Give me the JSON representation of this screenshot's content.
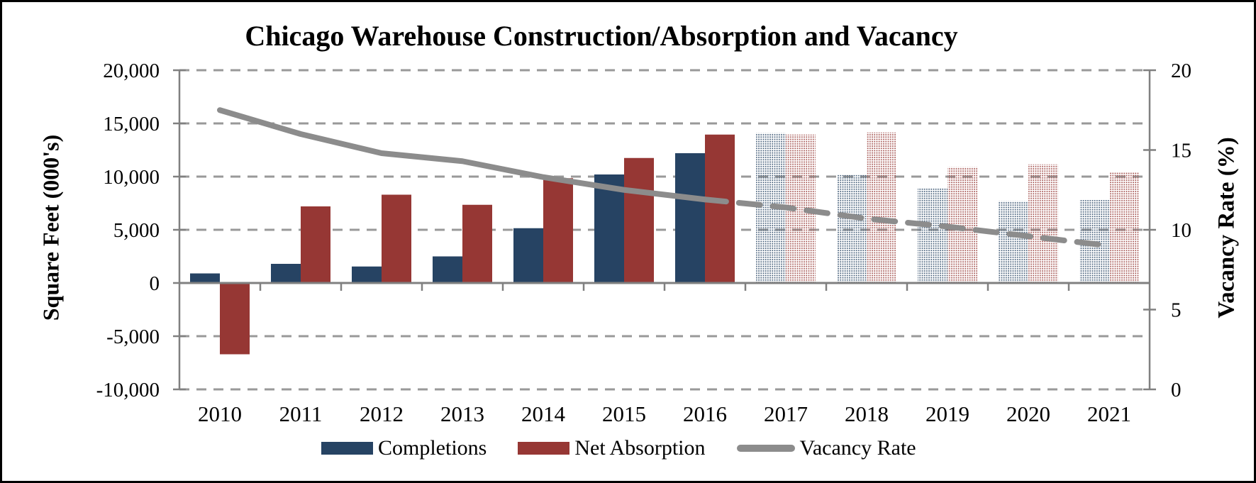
{
  "title": "Chicago Warehouse Construction/Absorption and Vacancy",
  "left_axis": {
    "title": "Square Feet (000's)",
    "tick_labels": [
      "20,000",
      "15,000",
      "10,000",
      "5,000",
      "0",
      "-5,000",
      "-10,000"
    ],
    "tick_values": [
      20000,
      15000,
      10000,
      5000,
      0,
      -5000,
      -10000
    ],
    "min": -10000,
    "max": 20000
  },
  "right_axis": {
    "title": "Vacancy Rate (%)",
    "tick_labels": [
      "20",
      "15",
      "10",
      "5",
      "0"
    ],
    "tick_values": [
      20,
      15,
      10,
      5,
      0
    ],
    "min": 0,
    "max": 20
  },
  "legend": [
    {
      "label": "Completions",
      "marker": "bar-blue"
    },
    {
      "label": "Net Absorption",
      "marker": "bar-red"
    },
    {
      "label": "Vacancy Rate",
      "marker": "line-gray"
    }
  ],
  "colors": {
    "completions": "#264363",
    "absorption": "#963734",
    "vacancy": "#8C8C8C",
    "gridline": "#999999",
    "axis": "#808080"
  },
  "chart_data": {
    "type": "bar+line combo",
    "categories": [
      "2010",
      "2011",
      "2012",
      "2013",
      "2014",
      "2015",
      "2016",
      "2017",
      "2018",
      "2019",
      "2020",
      "2021"
    ],
    "series": [
      {
        "name": "Completions",
        "type": "bar",
        "axis": "left",
        "values": [
          900,
          1800,
          1550,
          2500,
          5150,
          10200,
          12200,
          14100,
          10150,
          8900,
          7700,
          7800
        ]
      },
      {
        "name": "Net Absorption",
        "type": "bar",
        "axis": "left",
        "values": [
          -6700,
          7200,
          8300,
          7350,
          9850,
          11750,
          13950,
          13950,
          14150,
          10900,
          11150,
          10450
        ]
      },
      {
        "name": "Vacancy Rate",
        "type": "line",
        "axis": "right",
        "values": [
          17.5,
          16.0,
          14.8,
          14.3,
          13.3,
          12.5,
          11.9,
          11.4,
          10.7,
          10.2,
          9.6,
          9.0
        ]
      }
    ],
    "actual_through": "2016",
    "forecast_from": "2017",
    "forecast_style": "dotted-pattern bars, dashed line",
    "ylabel_left": "Square Feet (000's)",
    "ylabel_right": "Vacancy Rate (%)",
    "ylim_left": [
      -10000,
      20000
    ],
    "ylim_right": [
      0,
      20
    ],
    "grid": "horizontal dashed"
  }
}
